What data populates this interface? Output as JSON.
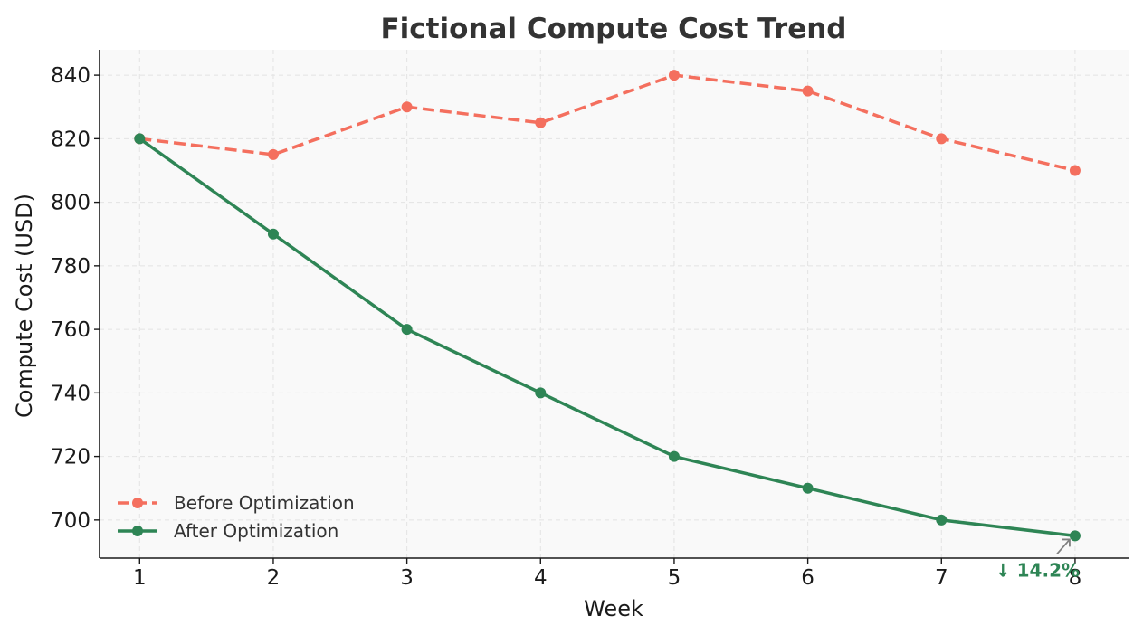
{
  "chart_data": {
    "type": "line",
    "title": "Fictional Compute Cost Trend",
    "xlabel": "Week",
    "ylabel": "Compute Cost (USD)",
    "x": [
      1,
      2,
      3,
      4,
      5,
      6,
      7,
      8
    ],
    "xlim": [
      0.7,
      8.4
    ],
    "ylim": [
      688,
      848
    ],
    "yticks": [
      700,
      720,
      740,
      760,
      780,
      800,
      820,
      840
    ],
    "grid": true,
    "legend_position": "lower-left",
    "background_color": "#f9f9f9",
    "series": [
      {
        "name": "Before Optimization",
        "values": [
          820,
          815,
          830,
          825,
          840,
          835,
          820,
          810
        ],
        "color": "#f46f5e",
        "line_style": "dashed",
        "marker": "circle"
      },
      {
        "name": "After Optimization",
        "values": [
          820,
          790,
          760,
          740,
          720,
          710,
          700,
          695
        ],
        "color": "#2e8555",
        "line_style": "solid",
        "marker": "circle"
      }
    ],
    "annotations": [
      {
        "text": "↓ 14.2%",
        "x": 8,
        "y": 695,
        "color": "#2e8555",
        "arrow_color": "#808080"
      }
    ]
  }
}
